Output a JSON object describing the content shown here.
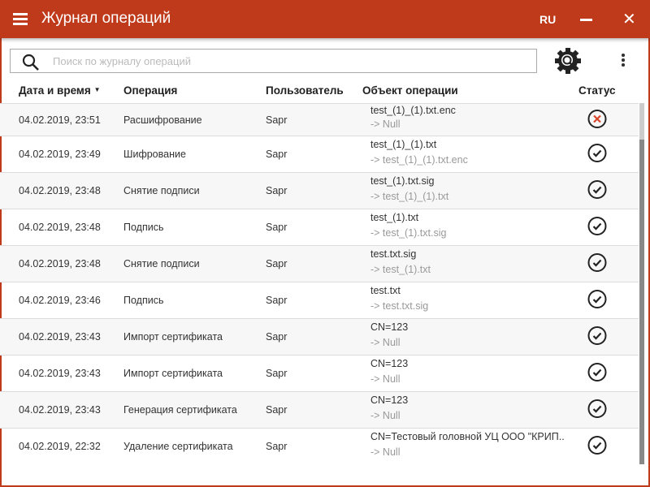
{
  "header": {
    "title": "Журнал операций",
    "lang": "RU",
    "color": "#bf3a1b"
  },
  "search": {
    "placeholder": "Поиск по журналу операций"
  },
  "columns": {
    "date": "Дата и время",
    "operation": "Операция",
    "user": "Пользователь",
    "object": "Объект операции",
    "status": "Статус"
  },
  "rows": [
    {
      "date": "04.02.2019, 23:51",
      "operation": "Расшифрование",
      "user": "Sapr",
      "object": "test_(1)_(1).txt.enc",
      "target": "-> Null",
      "status": "error"
    },
    {
      "date": "04.02.2019, 23:49",
      "operation": "Шифрование",
      "user": "Sapr",
      "object": "test_(1)_(1).txt",
      "target": "-> test_(1)_(1).txt.enc",
      "status": "ok"
    },
    {
      "date": "04.02.2019, 23:48",
      "operation": "Снятие подписи",
      "user": "Sapr",
      "object": "test_(1).txt.sig",
      "target": "-> test_(1)_(1).txt",
      "status": "ok"
    },
    {
      "date": "04.02.2019, 23:48",
      "operation": "Подпись",
      "user": "Sapr",
      "object": "test_(1).txt",
      "target": "-> test_(1).txt.sig",
      "status": "ok"
    },
    {
      "date": "04.02.2019, 23:48",
      "operation": "Снятие подписи",
      "user": "Sapr",
      "object": "test.txt.sig",
      "target": "-> test_(1).txt",
      "status": "ok"
    },
    {
      "date": "04.02.2019, 23:46",
      "operation": "Подпись",
      "user": "Sapr",
      "object": "test.txt",
      "target": "-> test.txt.sig",
      "status": "ok"
    },
    {
      "date": "04.02.2019, 23:43",
      "operation": "Импорт сертификата",
      "user": "Sapr",
      "object": "CN=123",
      "target": "-> Null",
      "status": "ok"
    },
    {
      "date": "04.02.2019, 23:43",
      "operation": "Импорт сертификата",
      "user": "Sapr",
      "object": "CN=123",
      "target": "-> Null",
      "status": "ok"
    },
    {
      "date": "04.02.2019, 23:43",
      "operation": "Генерация сертификата",
      "user": "Sapr",
      "object": "CN=123",
      "target": "-> Null",
      "status": "ok"
    },
    {
      "date": "04.02.2019, 22:32",
      "operation": "Удаление сертификата",
      "user": "Sapr",
      "object": "CN=Тестовый головной УЦ ООО \"КРИП..",
      "target": "-> Null",
      "status": "ok"
    }
  ]
}
